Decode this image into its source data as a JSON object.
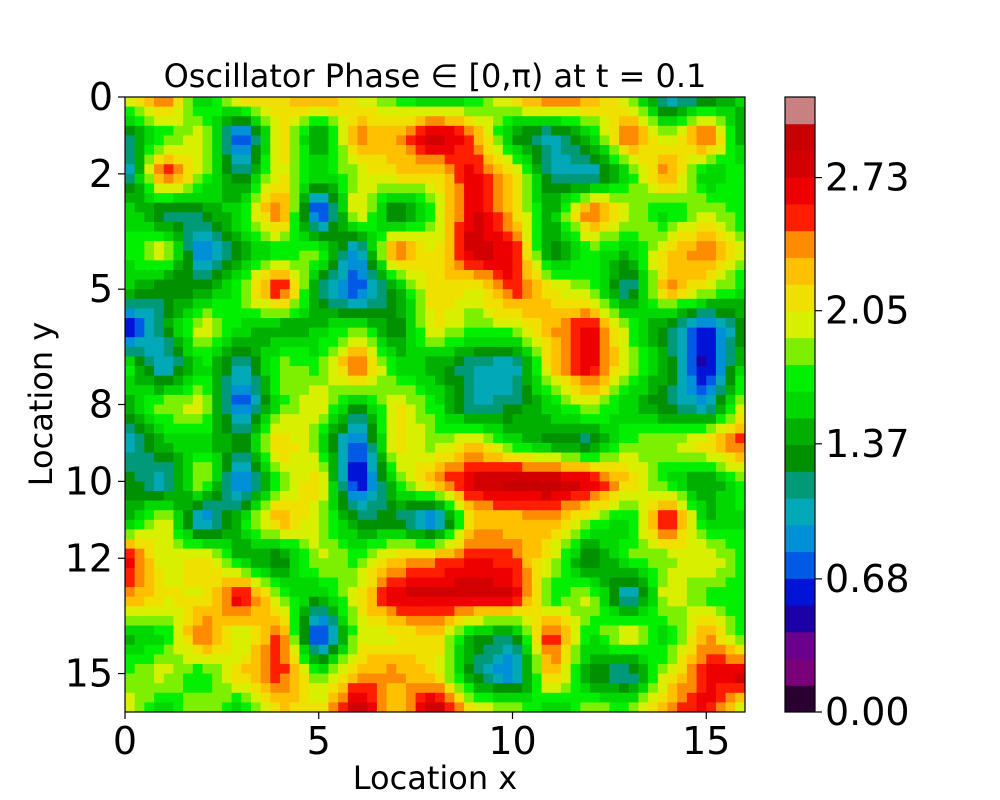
{
  "chart_data": {
    "type": "heatmap",
    "title": "Oscillator Phase ∈ [0,π) at t = 0.1",
    "xlabel": "Location x",
    "ylabel": "Location y",
    "xlim": [
      0,
      16
    ],
    "ylim": [
      16,
      0
    ],
    "x_ticks": [
      0,
      5,
      10,
      15
    ],
    "y_ticks": [
      0,
      2,
      5,
      8,
      10,
      12,
      15
    ],
    "x_tick_labels": [
      "0",
      "5",
      "10",
      "15"
    ],
    "y_tick_labels": [
      "0",
      "2",
      "5",
      "8",
      "10",
      "12",
      "15"
    ],
    "colorbar": {
      "range": [
        0,
        3.1416
      ],
      "ticks": [
        0.0,
        0.68,
        1.37,
        2.05,
        2.73
      ],
      "tick_labels": [
        "0.00",
        "0.68",
        "1.37",
        "2.05",
        "2.73"
      ],
      "levels": 23,
      "colors": [
        "#2a0030",
        "#7a007a",
        "#6a008c",
        "#1c00a8",
        "#0014d8",
        "#005ae6",
        "#0090d8",
        "#00a8b8",
        "#009a78",
        "#009000",
        "#00b000",
        "#00d800",
        "#00f000",
        "#7cf000",
        "#d8f000",
        "#f0e000",
        "#ffc000",
        "#ff8c00",
        "#ff1e00",
        "#ee0000",
        "#d20000",
        "#c80000",
        "#c88080"
      ]
    },
    "grid": false,
    "values": [
      [
        2.0,
        2.6,
        1.4,
        2.3,
        2.1,
        2.5,
        2.0,
        1.7,
        1.3,
        1.6,
        2.2,
        2.6,
        2.4,
        1.9,
        0.9,
        1.1,
        1.6
      ],
      [
        1.2,
        1.6,
        2.1,
        0.5,
        2.2,
        1.2,
        2.4,
        2.3,
        3.0,
        2.4,
        1.3,
        1.0,
        1.5,
        2.6,
        1.8,
        2.7,
        1.2
      ],
      [
        0.8,
        2.7,
        1.9,
        1.1,
        2.1,
        1.6,
        1.9,
        2.2,
        2.1,
        2.7,
        2.2,
        1.1,
        0.9,
        1.6,
        2.5,
        1.4,
        1.8
      ],
      [
        1.7,
        1.1,
        1.3,
        1.7,
        2.6,
        0.4,
        2.2,
        1.0,
        1.8,
        2.8,
        2.2,
        1.4,
        2.6,
        2.0,
        1.5,
        2.0,
        1.6
      ],
      [
        1.6,
        2.1,
        0.7,
        1.4,
        1.6,
        1.9,
        0.8,
        2.6,
        2.0,
        2.9,
        2.7,
        1.2,
        1.7,
        1.5,
        2.2,
        2.5,
        1.9
      ],
      [
        1.6,
        1.2,
        1.3,
        1.8,
        2.8,
        1.2,
        0.6,
        1.4,
        2.2,
        2.0,
        2.6,
        2.1,
        1.8,
        1.0,
        2.4,
        2.0,
        1.6
      ],
      [
        0.3,
        1.3,
        2.1,
        1.6,
        1.3,
        1.5,
        1.8,
        1.2,
        2.1,
        1.8,
        1.9,
        2.3,
        2.7,
        1.8,
        1.2,
        0.6,
        1.3
      ],
      [
        1.8,
        0.8,
        1.7,
        1.0,
        1.9,
        1.7,
        2.6,
        1.6,
        1.4,
        1.1,
        0.9,
        2.2,
        2.8,
        1.9,
        1.4,
        0.4,
        1.7
      ],
      [
        1.4,
        1.9,
        2.0,
        0.6,
        1.7,
        2.1,
        1.3,
        2.1,
        1.7,
        1.0,
        1.2,
        1.6,
        2.0,
        1.5,
        1.2,
        0.9,
        2.0
      ],
      [
        0.9,
        1.5,
        1.6,
        1.3,
        2.3,
        1.7,
        0.6,
        2.2,
        1.8,
        2.2,
        1.6,
        1.3,
        1.1,
        1.8,
        1.9,
        2.2,
        2.6
      ],
      [
        1.4,
        0.9,
        2.1,
        0.6,
        1.8,
        2.2,
        0.4,
        1.7,
        2.4,
        2.8,
        3.0,
        3.0,
        2.8,
        2.2,
        1.6,
        1.3,
        1.8
      ],
      [
        1.3,
        2.1,
        0.7,
        1.6,
        2.4,
        1.9,
        1.3,
        1.2,
        0.6,
        2.2,
        2.2,
        2.3,
        1.9,
        1.5,
        2.8,
        1.5,
        1.6
      ],
      [
        2.8,
        1.9,
        2.2,
        1.4,
        1.2,
        2.0,
        1.7,
        2.2,
        2.4,
        2.6,
        2.5,
        2.0,
        1.1,
        1.8,
        1.8,
        2.1,
        1.7
      ],
      [
        2.4,
        2.1,
        2.0,
        2.8,
        1.8,
        1.4,
        2.1,
        2.8,
        2.8,
        2.9,
        2.8,
        1.6,
        2.0,
        0.8,
        2.1,
        1.7,
        1.7
      ],
      [
        1.4,
        1.6,
        2.6,
        1.8,
        2.6,
        0.4,
        1.9,
        2.0,
        2.2,
        1.4,
        1.2,
        2.7,
        1.6,
        2.2,
        1.5,
        2.4,
        1.6
      ],
      [
        1.8,
        2.0,
        1.6,
        2.2,
        2.6,
        1.7,
        2.3,
        2.4,
        2.1,
        1.2,
        0.7,
        2.4,
        1.3,
        1.0,
        2.0,
        2.6,
        2.9
      ],
      [
        2.1,
        1.5,
        2.0,
        1.5,
        2.2,
        2.1,
        3.0,
        2.1,
        3.0,
        2.1,
        2.0,
        1.4,
        1.9,
        1.8,
        2.4,
        2.7,
        1.8
      ]
    ]
  }
}
